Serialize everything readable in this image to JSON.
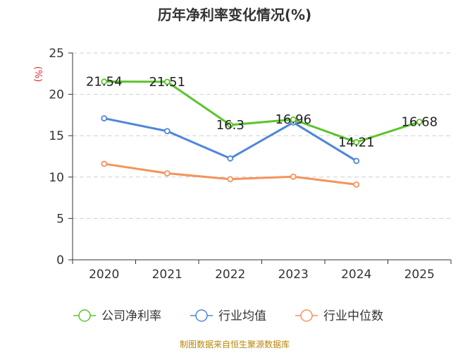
{
  "chart_data": {
    "type": "line",
    "title": "历年净利率变化情况(%)",
    "unit_label": "(%)",
    "categories": [
      "2020",
      "2021",
      "2022",
      "2023",
      "2024",
      "2025"
    ],
    "ylim": [
      0,
      25
    ],
    "yticks": [
      0,
      5,
      10,
      15,
      20,
      25
    ],
    "grid": true,
    "legend_position": "bottom",
    "series": [
      {
        "name": "公司净利率",
        "color": "#5cc42b",
        "values": [
          21.54,
          21.51,
          16.3,
          16.96,
          14.21,
          16.68
        ],
        "labels": [
          "21.54",
          "21.51",
          "16.3",
          "16.96",
          "14.21",
          "16.68"
        ]
      },
      {
        "name": "行业均值",
        "color": "#4f86d9",
        "values": [
          17.1,
          15.55,
          12.25,
          16.6,
          11.95,
          null
        ]
      },
      {
        "name": "行业中位数",
        "color": "#f5935a",
        "values": [
          11.6,
          10.45,
          9.75,
          10.05,
          9.1,
          null
        ]
      }
    ],
    "source": "制图数据来自恒生聚源数据库"
  }
}
